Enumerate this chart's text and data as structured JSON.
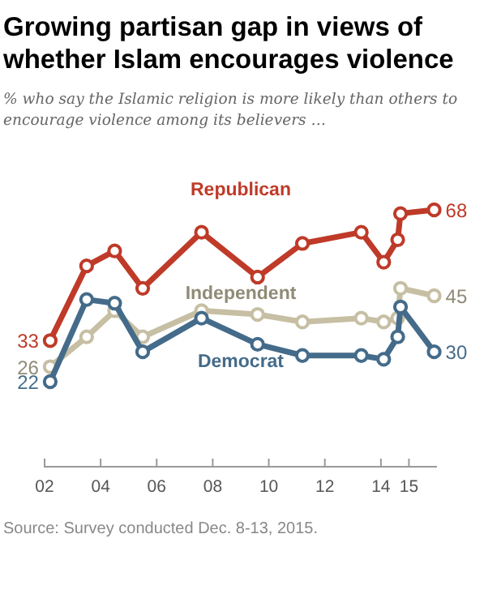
{
  "chart_data": {
    "type": "line",
    "title": "Growing partisan gap in views of whether Islam encourages violence",
    "subtitle": "% who say the Islamic religion is more likely than others to encourage violence among its believers …",
    "x": [
      2002.2,
      2003.5,
      2004.5,
      2005.5,
      2007.6,
      2009.6,
      2011.2,
      2013.3,
      2014.1,
      2014.6,
      2014.7,
      2015.9
    ],
    "series": [
      {
        "name": "Republican",
        "color": "#bf3a28",
        "values": [
          33,
          53,
          57,
          47,
          62,
          50,
          59,
          62,
          54,
          60,
          67,
          68
        ],
        "value_labels": [
          "33",
          null,
          null,
          null,
          null,
          null,
          null,
          null,
          null,
          null,
          null,
          "68"
        ]
      },
      {
        "name": "Independent",
        "color": "#c6bfa3",
        "values": [
          26,
          34,
          41,
          34,
          41,
          40,
          38,
          39,
          38,
          39,
          47,
          45
        ],
        "value_labels": [
          "26",
          null,
          null,
          null,
          null,
          null,
          null,
          null,
          null,
          null,
          null,
          "45"
        ]
      },
      {
        "name": "Democrat",
        "color": "#446b8a",
        "values": [
          22,
          44,
          43,
          30,
          39,
          32,
          29,
          29,
          28,
          34,
          42,
          30
        ],
        "value_labels": [
          "22",
          null,
          null,
          null,
          null,
          null,
          null,
          null,
          null,
          null,
          null,
          "30"
        ]
      }
    ],
    "xlim": [
      2002,
      2016
    ],
    "xticks": [
      {
        "value": 2002,
        "label": "02"
      },
      {
        "value": 2004,
        "label": "04"
      },
      {
        "value": 2006,
        "label": "06"
      },
      {
        "value": 2008,
        "label": "08"
      },
      {
        "value": 2010,
        "label": "10"
      },
      {
        "value": 2012,
        "label": "12"
      },
      {
        "value": 2014,
        "label": "14"
      },
      {
        "value": 2015,
        "label": "15"
      }
    ],
    "tick_labels": "x",
    "marker": "circle",
    "line_style": "solid",
    "annotations": [
      "Source: Survey conducted Dec. 8-13, 2015."
    ]
  }
}
